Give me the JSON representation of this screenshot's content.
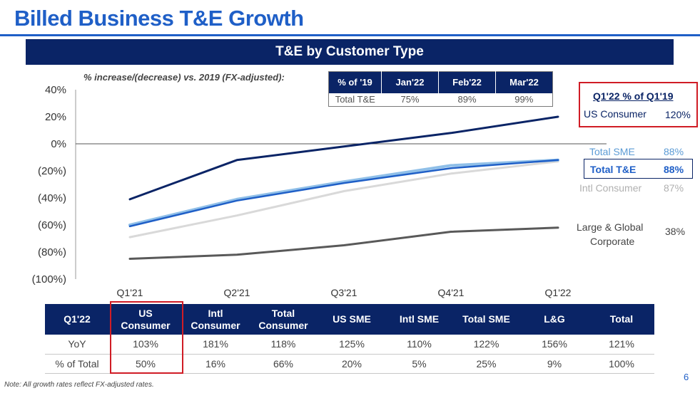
{
  "page": {
    "title": "Billed Business T&E Growth",
    "banner": "T&E by Customer Type",
    "subtitle": "% increase/(decrease)  vs. 2019 (FX-adjusted):",
    "note": "Note: All growth rates reflect FX-adjusted rates.",
    "page_number": "6"
  },
  "monthly_table": {
    "headers": [
      "% of '19",
      "Jan'22",
      "Feb'22",
      "Mar'22"
    ],
    "row": [
      "Total T&E",
      "75%",
      "89%",
      "99%"
    ]
  },
  "q1_summary": {
    "header": "Q1'22 % of Q1'19",
    "items": [
      {
        "label": "US Consumer",
        "value": "120%",
        "color": "#0a2466"
      },
      {
        "label": "Total SME",
        "value": "88%",
        "color": "#5b9bd5"
      },
      {
        "label": "Total T&E",
        "value": "88%",
        "color": "#1f5fc7"
      },
      {
        "label": "Intl Consumer",
        "value": "87%",
        "color": "#b0b0b0"
      },
      {
        "label": "Large & Global Corporate",
        "label_line1": "Large & Global",
        "label_line2": "Corporate",
        "value": "38%",
        "color": "#595959"
      }
    ]
  },
  "chart_data": {
    "type": "line",
    "x": [
      "Q1'21",
      "Q2'21",
      "Q3'21",
      "Q4'21",
      "Q1'22"
    ],
    "ylim": [
      -100,
      40
    ],
    "yticks": [
      40,
      20,
      0,
      -20,
      -40,
      -60,
      -80,
      -100
    ],
    "ytick_labels": [
      "40%",
      "20%",
      "0%",
      "(20%)",
      "(40%)",
      "(60%)",
      "(80%)",
      "(100%)"
    ],
    "series": [
      {
        "name": "US Consumer",
        "color": "#0a2466",
        "values": [
          -41,
          -12,
          -2,
          8,
          20
        ]
      },
      {
        "name": "Total SME",
        "color": "#8fbfe8",
        "values": [
          -60,
          -41,
          -28,
          -16,
          -12
        ]
      },
      {
        "name": "Total T&E",
        "color": "#1f5fc7",
        "values": [
          -61,
          -42,
          -29,
          -18,
          -12
        ]
      },
      {
        "name": "Intl Consumer",
        "color": "#d9d9d9",
        "values": [
          -69,
          -53,
          -35,
          -22,
          -13
        ]
      },
      {
        "name": "Large & Global Corporate",
        "color": "#595959",
        "values": [
          -85,
          -82,
          -75,
          -65,
          -62
        ]
      }
    ]
  },
  "bottom_table": {
    "headers": [
      {
        "line1": "Q1'22",
        "line2": ""
      },
      {
        "line1": "US",
        "line2": "Consumer"
      },
      {
        "line1": "Intl",
        "line2": "Consumer"
      },
      {
        "line1": "Total",
        "line2": "Consumer"
      },
      {
        "line1": "US SME",
        "line2": ""
      },
      {
        "line1": "Intl SME",
        "line2": ""
      },
      {
        "line1": "Total SME",
        "line2": ""
      },
      {
        "line1": "L&G",
        "line2": ""
      },
      {
        "line1": "Total",
        "line2": ""
      }
    ],
    "rows": [
      [
        "YoY",
        "103%",
        "181%",
        "118%",
        "125%",
        "110%",
        "122%",
        "156%",
        "121%"
      ],
      [
        "% of Total",
        "50%",
        "16%",
        "66%",
        "20%",
        "5%",
        "25%",
        "9%",
        "100%"
      ]
    ]
  }
}
